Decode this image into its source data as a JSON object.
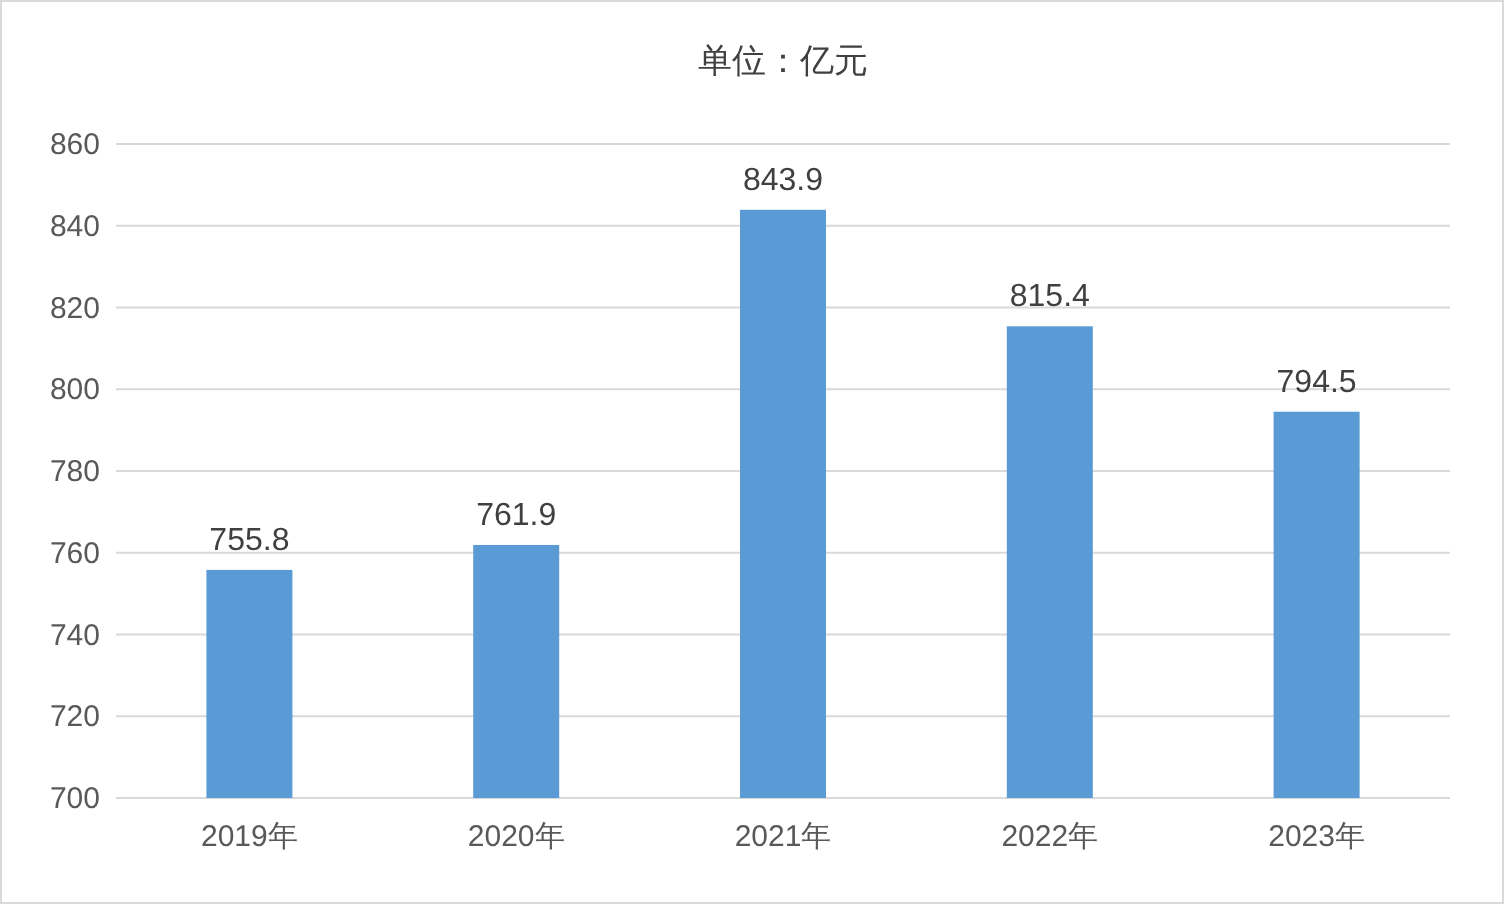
{
  "chart_data": {
    "type": "bar",
    "title": "单位：亿元",
    "categories": [
      "2019年",
      "2020年",
      "2021年",
      "2022年",
      "2023年"
    ],
    "values": [
      755.8,
      761.9,
      843.9,
      815.4,
      794.5
    ],
    "color": "#5b9bd5",
    "ylim": [
      700,
      860
    ],
    "yticks": [
      700,
      720,
      740,
      760,
      780,
      800,
      820,
      840,
      860
    ],
    "grid": "y",
    "data_labels": true
  }
}
